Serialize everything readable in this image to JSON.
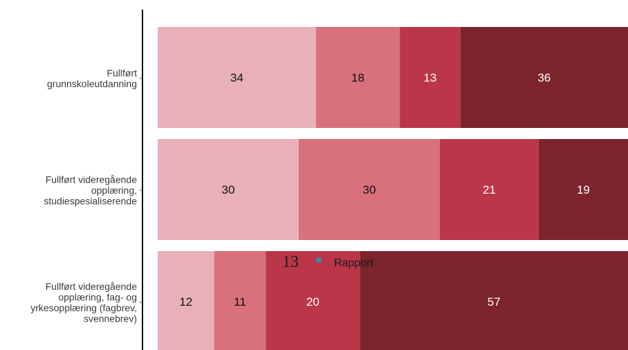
{
  "chart_data": {
    "type": "bar",
    "orientation": "horizontal",
    "stacked": true,
    "normalized_percent": true,
    "categories": [
      "Fullført\ngrunnskoleutdanning",
      "Fullført videregående\nopplæring,\nstudiespesialiserende",
      "Fullført videregående\nopplæring, fag- og\nyrkesopplæring (fagbrev,\nsvennebrev)"
    ],
    "series": [
      {
        "values": [
          34,
          30,
          12
        ],
        "color": "#e8b1b7",
        "label_color": "#111111"
      },
      {
        "values": [
          18,
          30,
          11
        ],
        "color": "#d8717c",
        "label_color": "#111111"
      },
      {
        "values": [
          13,
          21,
          20
        ],
        "color": "#bb3649",
        "label_color": "#ffffff"
      },
      {
        "values": [
          36,
          19,
          57
        ],
        "color": "#7b242e",
        "label_color": "#ffffff"
      }
    ],
    "title": "",
    "xlabel": "",
    "ylabel": "",
    "grid": false,
    "legend": "none"
  },
  "footer": {
    "number": "13",
    "dot_color": "#3a8fa0",
    "text": "Rapport"
  }
}
